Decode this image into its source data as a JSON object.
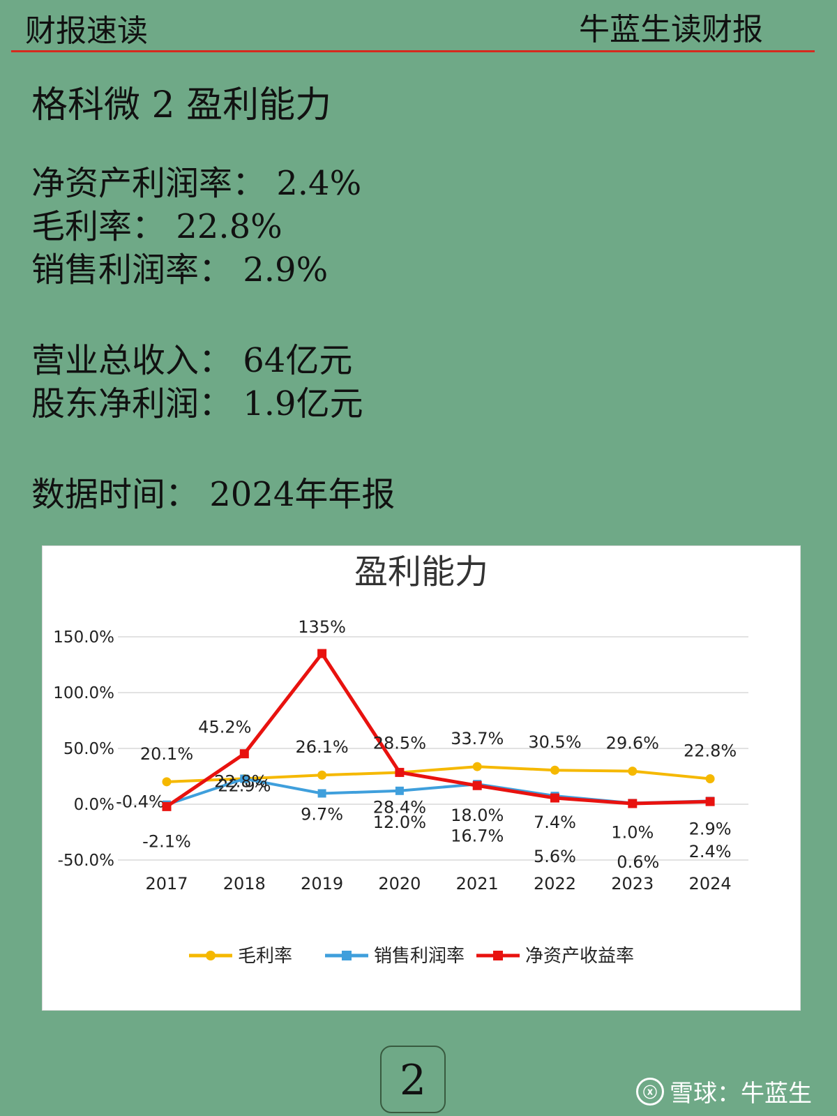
{
  "header": {
    "left": "财报速读",
    "right": "牛蓝生读财报"
  },
  "title": "格科微 2 盈利能力",
  "metrics": [
    "净资产利润率： 2.4%",
    "毛利率： 22.8%",
    "销售利润率： 2.9%"
  ],
  "totals": [
    "营业总收入： 64亿元",
    "股东净利润： 1.9亿元"
  ],
  "data_time": "数据时间： 2024年年报",
  "page_number": "2",
  "watermark": {
    "logo": "ⓧ",
    "text": "雪球：牛蓝生"
  },
  "chart_data": {
    "type": "line",
    "title": "盈利能力",
    "categories": [
      "2017",
      "2018",
      "2019",
      "2020",
      "2021",
      "2022",
      "2023",
      "2024"
    ],
    "ylim": [
      -50,
      150
    ],
    "yticks": [
      "-50.0%",
      "0.0%",
      "50.0%",
      "100.0%",
      "150.0%"
    ],
    "grid": true,
    "legend_position": "bottom",
    "series": [
      {
        "name": "毛利率",
        "color": "#f5b800",
        "marker": "circle",
        "values": [
          20.1,
          22.9,
          26.1,
          28.4,
          33.7,
          30.5,
          29.6,
          22.8
        ],
        "labels": [
          "20.1%",
          "22.9%",
          "26.1%",
          "28.4%",
          "33.7%",
          "30.5%",
          "29.6%",
          "22.8%"
        ]
      },
      {
        "name": "销售利润率",
        "color": "#3f9fdc",
        "marker": "square",
        "values": [
          -0.4,
          22.8,
          9.7,
          12.0,
          18.0,
          7.4,
          1.0,
          2.9
        ],
        "labels": [
          "-0.4%",
          "22.8%",
          "9.7%",
          "12.0%",
          "18.0%",
          "7.4%",
          "1.0%",
          "2.9%"
        ]
      },
      {
        "name": "净资产收益率",
        "color": "#e8120f",
        "marker": "square",
        "values": [
          -2.1,
          45.2,
          135,
          28.5,
          16.7,
          5.6,
          0.6,
          2.4
        ],
        "labels": [
          "-2.1%",
          "45.2%",
          "135%",
          "28.5%",
          "16.7%",
          "5.6%",
          "0.6%",
          "2.4%"
        ]
      }
    ]
  }
}
